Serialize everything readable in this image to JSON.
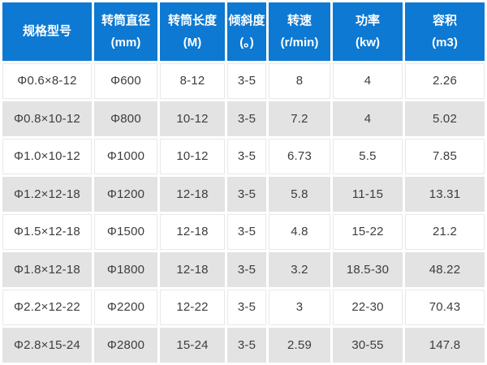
{
  "table": {
    "columns": [
      {
        "label": "规格型号",
        "unit": ""
      },
      {
        "label": "转筒直径",
        "unit": "(mm)"
      },
      {
        "label": "转筒长度",
        "unit": "(M)"
      },
      {
        "label": "倾斜度",
        "unit": "(。)"
      },
      {
        "label": "转速",
        "unit": "(r/min)"
      },
      {
        "label": "功率",
        "unit": "(kw)"
      },
      {
        "label": "容积",
        "unit": "(m3)"
      }
    ],
    "rows": [
      [
        "Φ0.6×8-12",
        "Φ600",
        "8-12",
        "3-5",
        "8",
        "4",
        "2.26"
      ],
      [
        "Φ0.8×10-12",
        "Φ800",
        "10-12",
        "3-5",
        "7.2",
        "4",
        "5.02"
      ],
      [
        "Φ1.0×10-12",
        "Φ1000",
        "10-12",
        "3-5",
        "6.73",
        "5.5",
        "7.85"
      ],
      [
        "Φ1.2×12-18",
        "Φ1200",
        "12-18",
        "3-5",
        "5.8",
        "11-15",
        "13.31"
      ],
      [
        "Φ1.5×12-18",
        "Φ1500",
        "12-18",
        "3-5",
        "4.8",
        "15-22",
        "21.2"
      ],
      [
        "Φ1.8×12-18",
        "Φ1800",
        "12-18",
        "3-5",
        "3.2",
        "18.5-30",
        "48.22"
      ],
      [
        "Φ2.2×12-22",
        "Φ2200",
        "12-22",
        "3-5",
        "3",
        "22-30",
        "70.43"
      ],
      [
        "Φ2.8×15-24",
        "Φ2800",
        "15-24",
        "3-5",
        "2.59",
        "30-55",
        "147.8"
      ]
    ],
    "colors": {
      "header_bg": "#0d79d2",
      "header_text": "#ffffff",
      "row_bg": "#ffffff",
      "row_alt_bg": "#e3e3e3",
      "cell_border": "#e8e8e8",
      "body_text": "#3d3d3d"
    }
  }
}
